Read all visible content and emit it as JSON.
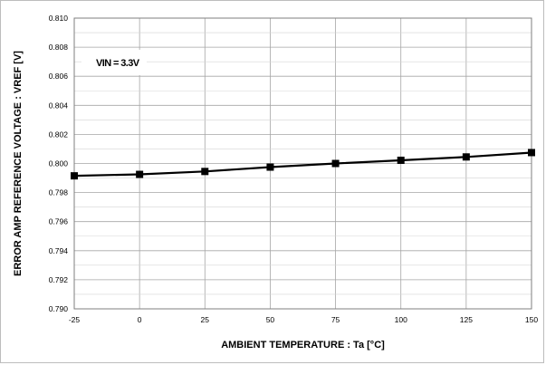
{
  "chart_data": {
    "type": "line",
    "xlabel": "AMBIENT TEMPERATURE : Ta [°C]",
    "ylabel": "ERROR AMP REFERENCE VOLTAGE : VREF [V]",
    "annotation": "VIN = 3.3V",
    "xlim": [
      -25,
      150
    ],
    "ylim": [
      0.79,
      0.81
    ],
    "x_ticks": [
      "-25",
      "0",
      "25",
      "50",
      "75",
      "100",
      "125",
      "150"
    ],
    "y_ticks": [
      "0.790",
      "0.792",
      "0.794",
      "0.796",
      "0.798",
      "0.800",
      "0.802",
      "0.804",
      "0.806",
      "0.808",
      "0.810"
    ],
    "grid": true,
    "line_color": "#000000",
    "marker": "square",
    "series": [
      {
        "x": [
          -25,
          0,
          25,
          50,
          75,
          100,
          125,
          150
        ],
        "y": [
          0.79915,
          0.79925,
          0.79945,
          0.79975,
          0.8,
          0.80022,
          0.80045,
          0.80075
        ]
      }
    ]
  }
}
